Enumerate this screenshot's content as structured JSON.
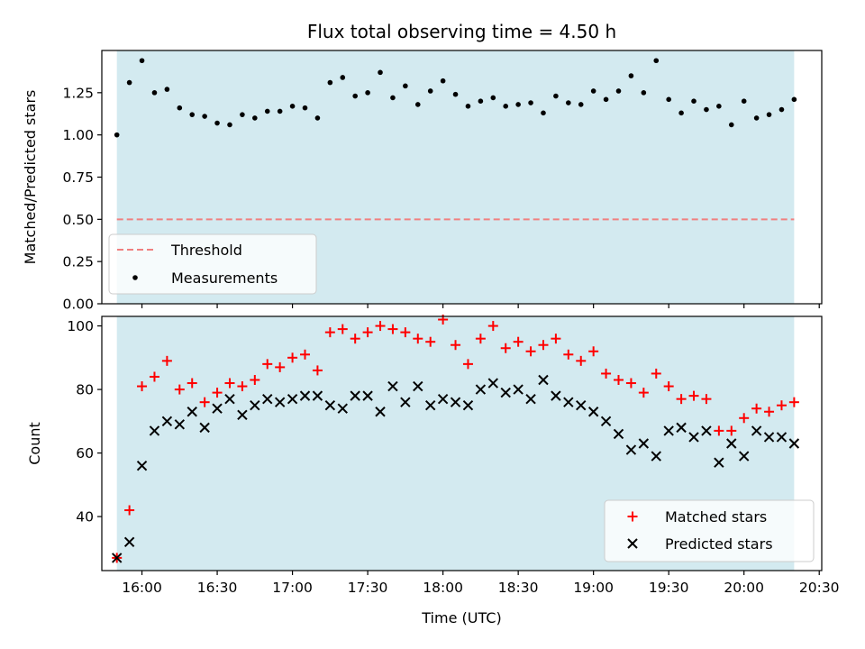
{
  "chart_data": [
    {
      "type": "scatter",
      "title": "Flux total observing time = 4.50 h",
      "ylabel": "Matched/Predicted stars",
      "xlabel": "",
      "ylim": [
        0.0,
        1.5
      ],
      "yticks": [
        0.0,
        0.25,
        0.5,
        0.75,
        1.0,
        1.25
      ],
      "ytick_labels": [
        "0.00",
        "0.25",
        "0.50",
        "0.75",
        "1.00",
        "1.25"
      ],
      "shaded_span": [
        "15:50",
        "20:20"
      ],
      "shade_color": "#d3eaf0",
      "threshold": 0.5,
      "legend_location": "lower-left",
      "series": [
        {
          "name": "Threshold",
          "kind": "dashed-line",
          "color": "#f08080",
          "x": [
            "15:50",
            "20:20"
          ],
          "y": [
            0.5,
            0.5
          ]
        },
        {
          "name": "Measurements",
          "kind": "dot",
          "color": "#000000",
          "x": [
            "15:50",
            "15:55",
            "16:00",
            "16:05",
            "16:10",
            "16:15",
            "16:20",
            "16:25",
            "16:30",
            "16:35",
            "16:40",
            "16:45",
            "16:50",
            "16:55",
            "17:00",
            "17:05",
            "17:10",
            "17:15",
            "17:20",
            "17:25",
            "17:30",
            "17:35",
            "17:40",
            "17:45",
            "17:50",
            "17:55",
            "18:00",
            "18:05",
            "18:10",
            "18:15",
            "18:20",
            "18:25",
            "18:30",
            "18:35",
            "18:40",
            "18:45",
            "18:50",
            "18:55",
            "19:00",
            "19:05",
            "19:10",
            "19:15",
            "19:20",
            "19:25",
            "19:30",
            "19:35",
            "19:40",
            "19:45",
            "19:50",
            "19:55",
            "20:00",
            "20:05",
            "20:10",
            "20:15",
            "20:20"
          ],
          "y": [
            1.0,
            1.31,
            1.44,
            1.25,
            1.27,
            1.16,
            1.12,
            1.11,
            1.07,
            1.06,
            1.12,
            1.1,
            1.14,
            1.14,
            1.17,
            1.16,
            1.1,
            1.31,
            1.34,
            1.23,
            1.25,
            1.37,
            1.22,
            1.29,
            1.18,
            1.26,
            1.32,
            1.24,
            1.17,
            1.2,
            1.22,
            1.17,
            1.18,
            1.19,
            1.13,
            1.23,
            1.19,
            1.18,
            1.26,
            1.21,
            1.26,
            1.35,
            1.25,
            1.44,
            1.21,
            1.13,
            1.2,
            1.15,
            1.17,
            1.06,
            1.2,
            1.1,
            1.12,
            1.15,
            1.21
          ]
        }
      ]
    },
    {
      "type": "scatter",
      "title": "",
      "ylabel": "Count",
      "xlabel": "Time (UTC)",
      "ylim": [
        23,
        103
      ],
      "yticks": [
        40,
        60,
        80,
        100
      ],
      "ytick_labels": [
        "40",
        "60",
        "80",
        "100"
      ],
      "xlim": [
        "15:44",
        "20:31"
      ],
      "xticks": [
        "16:00",
        "16:30",
        "17:00",
        "17:30",
        "18:00",
        "18:30",
        "19:00",
        "19:30",
        "20:00",
        "20:30"
      ],
      "xtick_labels": [
        "16:00",
        "16:30",
        "17:00",
        "17:30",
        "18:00",
        "18:30",
        "19:00",
        "19:30",
        "20:00",
        "20:30"
      ],
      "shaded_span": [
        "15:50",
        "20:20"
      ],
      "shade_color": "#d3eaf0",
      "legend_location": "lower-right",
      "series": [
        {
          "name": "Matched stars",
          "marker": "+",
          "color": "#ff0000",
          "x": [
            "15:50",
            "15:55",
            "16:00",
            "16:05",
            "16:10",
            "16:15",
            "16:20",
            "16:25",
            "16:30",
            "16:35",
            "16:40",
            "16:45",
            "16:50",
            "16:55",
            "17:00",
            "17:05",
            "17:10",
            "17:15",
            "17:20",
            "17:25",
            "17:30",
            "17:35",
            "17:40",
            "17:45",
            "17:50",
            "17:55",
            "18:00",
            "18:05",
            "18:10",
            "18:15",
            "18:20",
            "18:25",
            "18:30",
            "18:35",
            "18:40",
            "18:45",
            "18:50",
            "18:55",
            "19:00",
            "19:05",
            "19:10",
            "19:15",
            "19:20",
            "19:25",
            "19:30",
            "19:35",
            "19:40",
            "19:45",
            "19:50",
            "19:55",
            "20:00",
            "20:05",
            "20:10",
            "20:15",
            "20:20"
          ],
          "y": [
            27,
            42,
            81,
            84,
            89,
            80,
            82,
            76,
            79,
            82,
            81,
            83,
            88,
            87,
            90,
            91,
            86,
            98,
            99,
            96,
            98,
            100,
            99,
            98,
            96,
            95,
            102,
            94,
            88,
            96,
            100,
            93,
            95,
            92,
            94,
            96,
            91,
            89,
            92,
            85,
            83,
            82,
            79,
            85,
            81,
            77,
            78,
            77,
            67,
            67,
            71,
            74,
            73,
            75,
            76
          ]
        },
        {
          "name": "Predicted stars",
          "marker": "x",
          "color": "#000000",
          "x": [
            "15:50",
            "15:55",
            "16:00",
            "16:05",
            "16:10",
            "16:15",
            "16:20",
            "16:25",
            "16:30",
            "16:35",
            "16:40",
            "16:45",
            "16:50",
            "16:55",
            "17:00",
            "17:05",
            "17:10",
            "17:15",
            "17:20",
            "17:25",
            "17:30",
            "17:35",
            "17:40",
            "17:45",
            "17:50",
            "17:55",
            "18:00",
            "18:05",
            "18:10",
            "18:15",
            "18:20",
            "18:25",
            "18:30",
            "18:35",
            "18:40",
            "18:45",
            "18:50",
            "18:55",
            "19:00",
            "19:05",
            "19:10",
            "19:15",
            "19:20",
            "19:25",
            "19:30",
            "19:35",
            "19:40",
            "19:45",
            "19:50",
            "19:55",
            "20:00",
            "20:05",
            "20:10",
            "20:15",
            "20:20"
          ],
          "y": [
            27,
            32,
            56,
            67,
            70,
            69,
            73,
            68,
            74,
            77,
            72,
            75,
            77,
            76,
            77,
            78,
            78,
            75,
            74,
            78,
            78,
            73,
            81,
            76,
            81,
            75,
            77,
            76,
            75,
            80,
            82,
            79,
            80,
            77,
            83,
            78,
            76,
            75,
            73,
            70,
            66,
            61,
            63,
            59,
            67,
            68,
            65,
            67,
            57,
            63,
            59,
            67,
            65,
            65,
            63
          ]
        }
      ]
    }
  ]
}
